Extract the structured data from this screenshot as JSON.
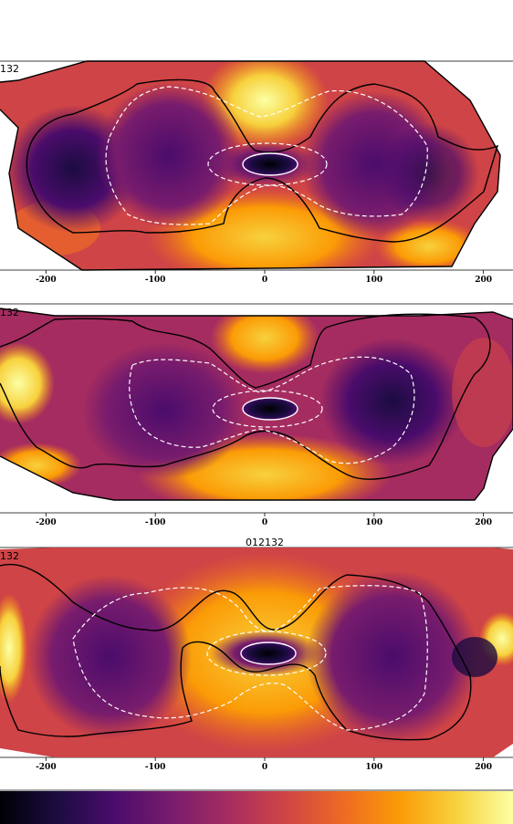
{
  "figure": {
    "colormap": "inferno",
    "colormap_stops": [
      "#000004",
      "#1b0c41",
      "#4a0c6b",
      "#781c6d",
      "#a52c60",
      "#cf4446",
      "#ed6925",
      "#fb9b06",
      "#f7d13d",
      "#fcffa4"
    ],
    "contour_solid_color": "#000000",
    "contour_dashed_color": "#ffffff",
    "background_color": "#ffffff"
  },
  "chart_data": [
    {
      "type": "heatmap",
      "panel_label": "132",
      "top_label": "",
      "x_tick_labels": [
        "-200",
        "-100",
        "0",
        "100",
        "200"
      ],
      "x_ticks": [
        -200,
        -100,
        0,
        100,
        200
      ],
      "xlim": [
        -242,
        227
      ],
      "contours": [
        "solid black",
        "dashed white"
      ],
      "high_value_regions": [
        "top center",
        "bottom center",
        "right edge"
      ],
      "low_value_regions": [
        "center ellipse",
        "left lobe",
        "right lobe"
      ]
    },
    {
      "type": "heatmap",
      "panel_label": "132",
      "top_label": "",
      "x_tick_labels": [
        "-200",
        "-100",
        "0",
        "100",
        "200"
      ],
      "x_ticks": [
        -200,
        -100,
        0,
        100,
        200
      ],
      "xlim": [
        -242,
        227
      ],
      "contours": [
        "solid black",
        "dashed white"
      ],
      "high_value_regions": [
        "top center",
        "bottom center",
        "left edge"
      ],
      "low_value_regions": [
        "center ellipse",
        "right lobe"
      ]
    },
    {
      "type": "heatmap",
      "panel_label": "132",
      "top_label": "012132",
      "x_tick_labels": [
        "-200",
        "-100",
        "0",
        "100",
        "200"
      ],
      "x_ticks": [
        -200,
        -100,
        0,
        100,
        200
      ],
      "xlim": [
        -242,
        227
      ],
      "contours": [
        "solid black",
        "dashed white"
      ],
      "high_value_regions": [
        "center band",
        "left edge",
        "right edge"
      ],
      "low_value_regions": [
        "center ellipse",
        "left lobe",
        "right lobe"
      ]
    }
  ]
}
